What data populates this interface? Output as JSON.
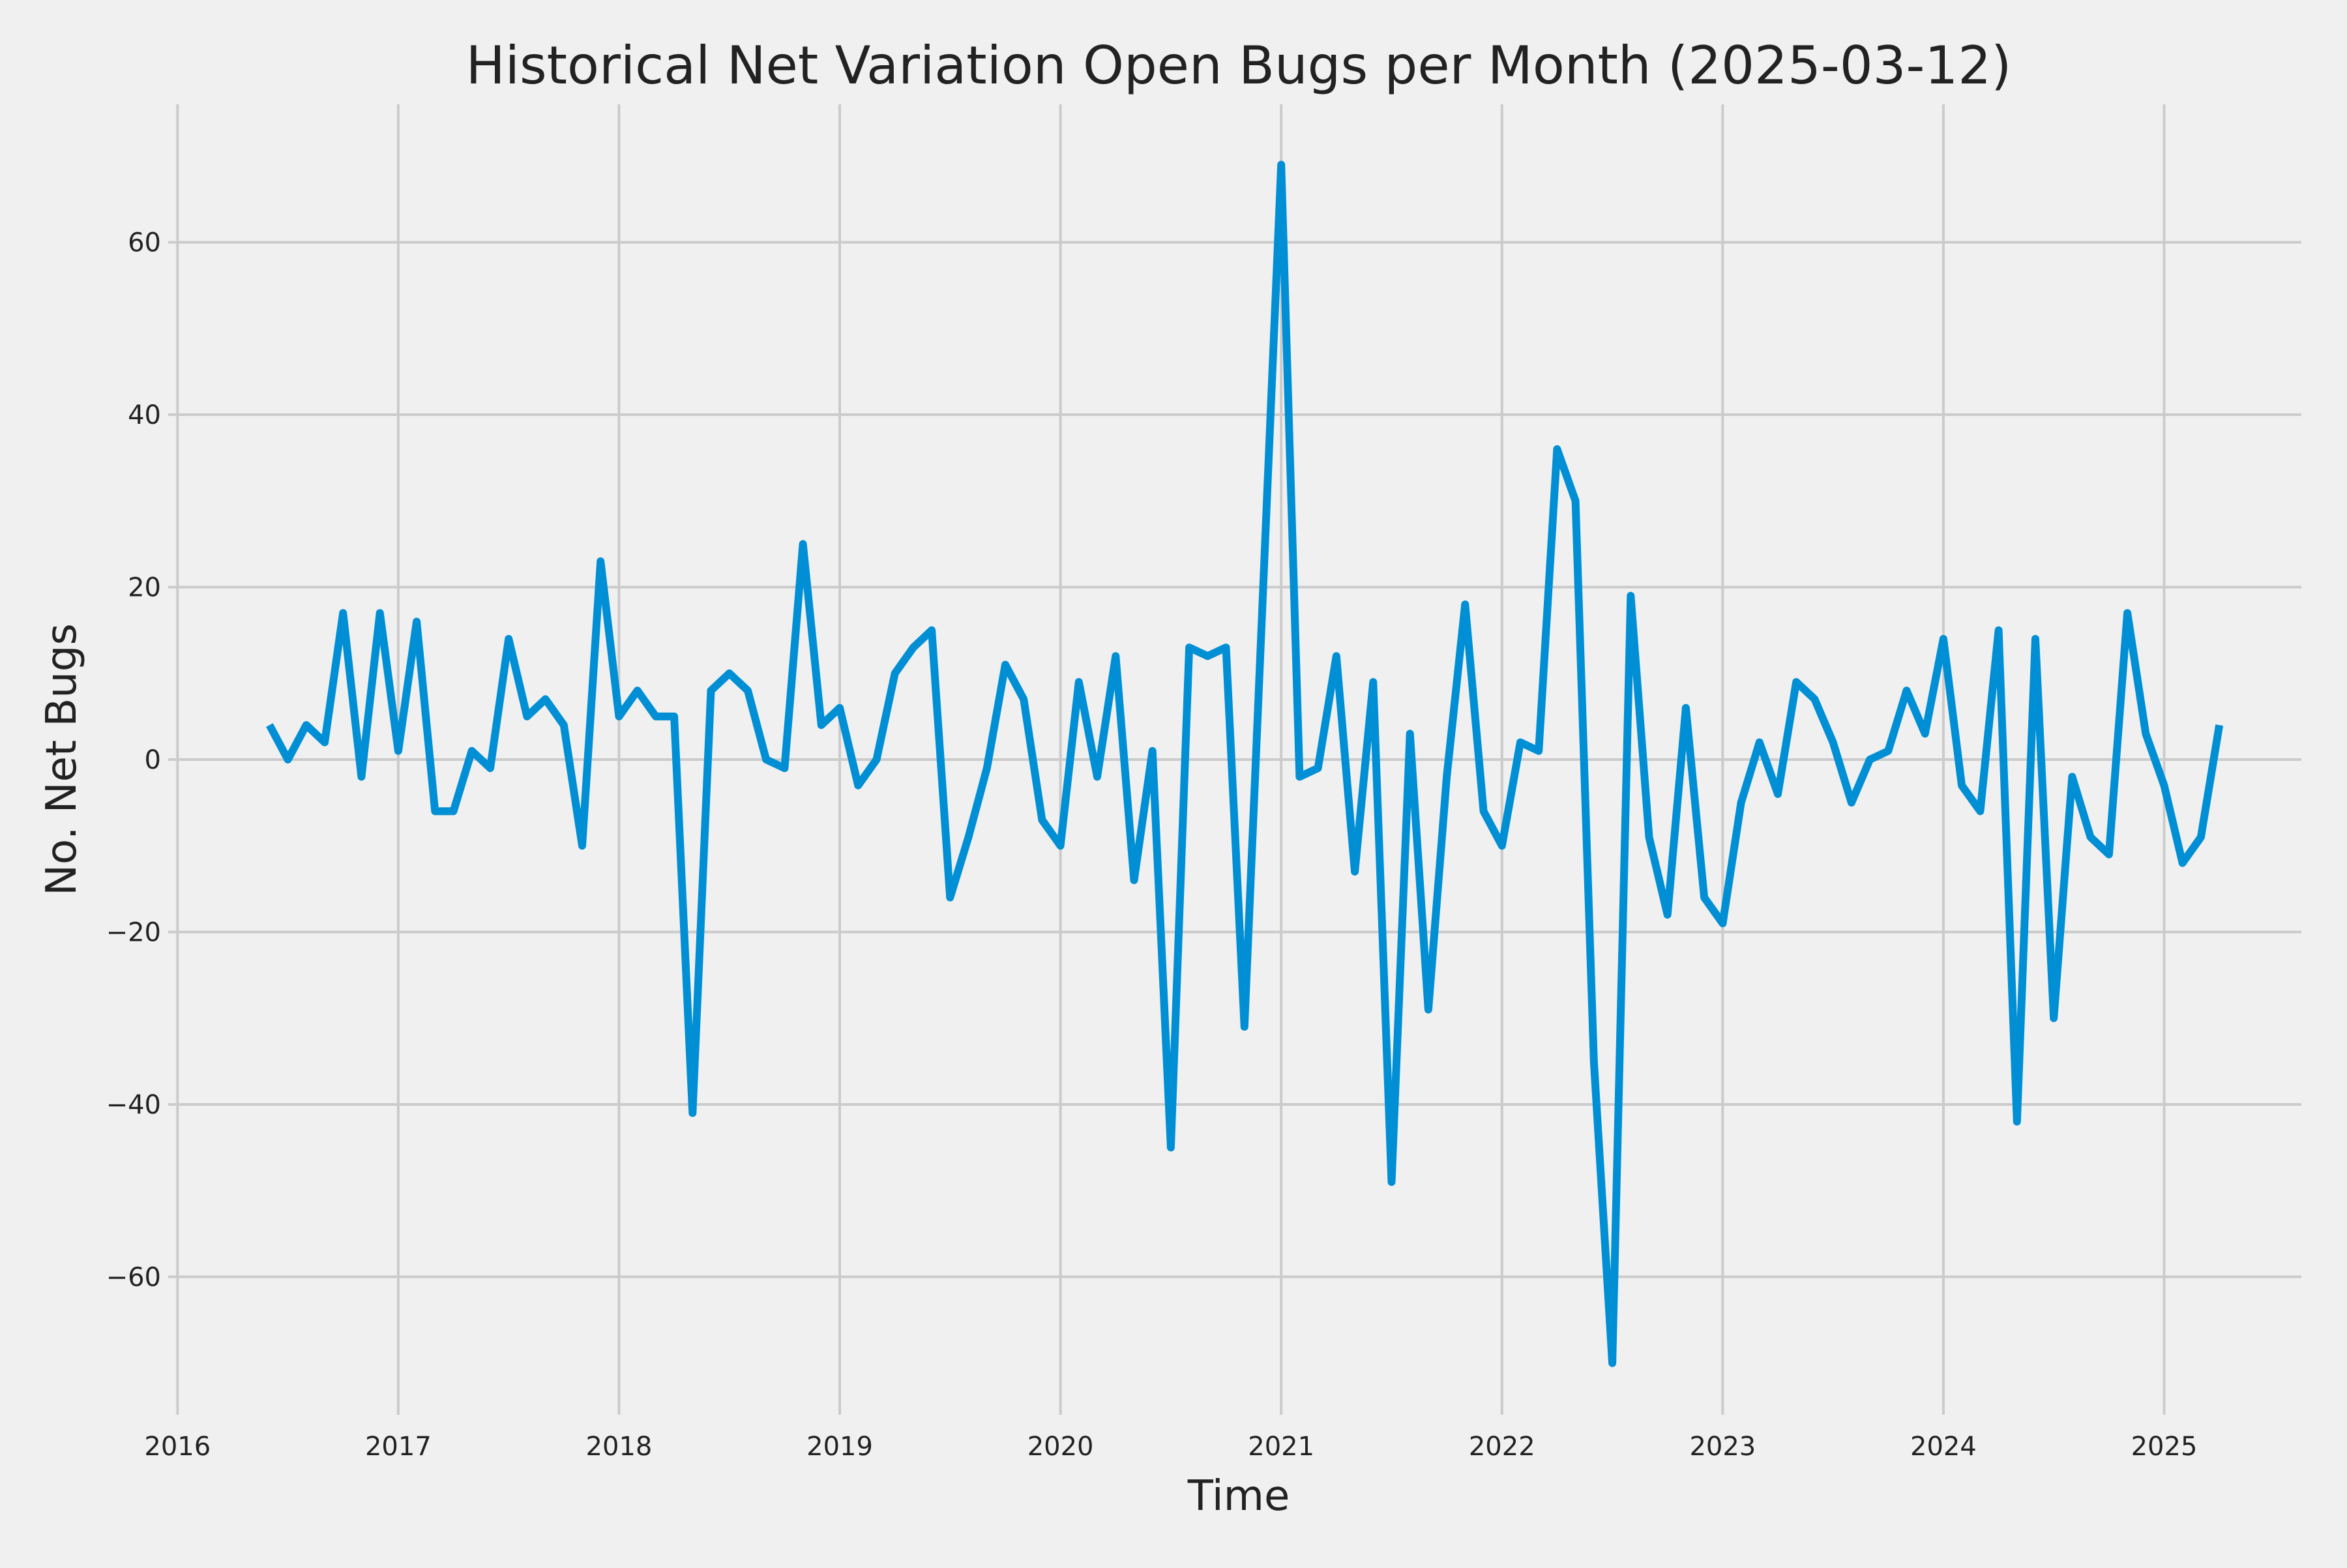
{
  "chart_data": {
    "type": "line",
    "title": "Historical Net Variation Open Bugs per Month (2025-03-12)",
    "xlabel": "Time",
    "ylabel": "No. Net Bugs",
    "x_ticks": [
      "2016",
      "2017",
      "2018",
      "2019",
      "2020",
      "2021",
      "2022",
      "2023",
      "2024",
      "2025"
    ],
    "y_ticks": [
      -60,
      -40,
      -20,
      0,
      20,
      40,
      60
    ],
    "xlim": [
      "2015-12-16",
      "2025-08-15"
    ],
    "ylim": [
      -76,
      76
    ],
    "grid": true,
    "colors": {
      "background": "#f0f0f0",
      "line": "#008fd5",
      "grid": "#cbcbcb"
    },
    "series": [
      {
        "x": [
          "2016-06",
          "2016-07",
          "2016-08",
          "2016-09",
          "2016-10",
          "2016-11",
          "2016-12",
          "2017-01",
          "2017-02",
          "2017-03",
          "2017-04",
          "2017-05",
          "2017-06",
          "2017-07",
          "2017-08",
          "2017-09",
          "2017-10",
          "2017-11",
          "2017-12",
          "2018-01",
          "2018-02",
          "2018-03",
          "2018-04",
          "2018-05",
          "2018-06",
          "2018-07",
          "2018-08",
          "2018-09",
          "2018-10",
          "2018-11",
          "2018-12",
          "2019-01",
          "2019-02",
          "2019-03",
          "2019-04",
          "2019-05",
          "2019-06",
          "2019-07",
          "2019-08",
          "2019-09",
          "2019-10",
          "2019-11",
          "2019-12",
          "2020-01",
          "2020-02",
          "2020-03",
          "2020-04",
          "2020-05",
          "2020-06",
          "2020-07",
          "2020-08",
          "2020-09",
          "2020-10",
          "2020-11",
          "2020-12",
          "2021-01",
          "2021-02",
          "2021-03",
          "2021-04",
          "2021-05",
          "2021-06",
          "2021-07",
          "2021-08",
          "2021-09",
          "2021-10",
          "2021-11",
          "2021-12",
          "2022-01",
          "2022-02",
          "2022-03",
          "2022-04",
          "2022-05",
          "2022-06",
          "2022-07",
          "2022-08",
          "2022-09",
          "2022-10",
          "2022-11",
          "2022-12",
          "2023-01",
          "2023-02",
          "2023-03",
          "2023-04",
          "2023-05",
          "2023-06",
          "2023-07",
          "2023-08",
          "2023-09",
          "2023-10",
          "2023-11",
          "2023-12",
          "2024-01",
          "2024-02",
          "2024-03",
          "2024-04",
          "2024-05",
          "2024-06",
          "2024-07",
          "2024-08",
          "2024-09",
          "2024-10",
          "2024-11",
          "2024-12",
          "2025-01",
          "2025-02",
          "2025-03",
          "2025-04"
        ],
        "y": [
          4,
          0,
          4,
          2,
          17,
          -2,
          17,
          1,
          16,
          -6,
          -6,
          1,
          -1,
          14,
          5,
          7,
          4,
          -10,
          23,
          5,
          8,
          5,
          5,
          -41,
          8,
          10,
          8,
          0,
          -1,
          25,
          4,
          6,
          -3,
          0,
          10,
          13,
          15,
          -16,
          -9,
          -1,
          11,
          7,
          -7,
          -10,
          9,
          -2,
          12,
          -14,
          1,
          -45,
          13,
          12,
          13,
          -31,
          19,
          69,
          -2,
          -1,
          12,
          -13,
          9,
          -49,
          3,
          -29,
          -2,
          18,
          -6,
          -10,
          2,
          1,
          36,
          30,
          -35,
          -70,
          19,
          -9,
          -18,
          6,
          -16,
          -19,
          -5,
          2,
          -4,
          9,
          7,
          2,
          -5,
          0,
          1,
          8,
          3,
          14,
          -3,
          -6,
          15,
          -42,
          14,
          -30,
          -2,
          -9,
          -11,
          17,
          3,
          -3,
          -12,
          -9,
          4
        ]
      }
    ]
  }
}
